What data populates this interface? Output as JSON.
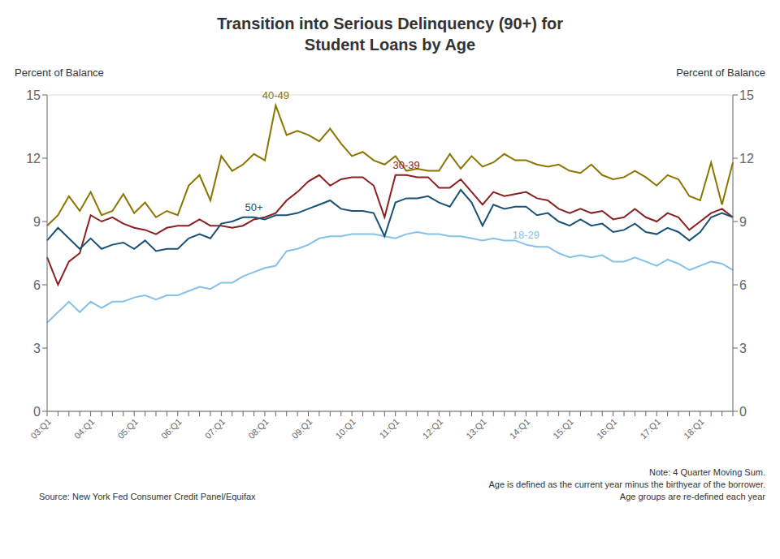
{
  "chart_data": {
    "type": "line",
    "title": "Transition into Serious Delinquency (90+) for\nStudent Loans by Age",
    "ylabel": "Percent of Balance",
    "y2label": "Percent of Balance",
    "source": "Source: New York Fed Consumer Credit Panel/Equifax",
    "notes": [
      "Note: 4 Quarter Moving Sum.",
      "Age is defined as the current year minus the birthyear of the borrower.",
      "Age groups are re-defined each year"
    ],
    "categories": [
      "03:Q1",
      null,
      null,
      null,
      "04:Q1",
      null,
      null,
      null,
      "05:Q1",
      null,
      null,
      null,
      "06:Q1",
      null,
      null,
      null,
      "07:Q1",
      null,
      null,
      null,
      "08:Q1",
      null,
      null,
      null,
      "09:Q1",
      null,
      null,
      null,
      "10:Q1",
      null,
      null,
      null,
      "11:Q1",
      null,
      null,
      null,
      "12:Q1",
      null,
      null,
      null,
      "13:Q1",
      null,
      null,
      null,
      "14:Q1",
      null,
      null,
      null,
      "15:Q1",
      null,
      null,
      null,
      "16:Q1",
      null,
      null,
      null,
      "17:Q1",
      null,
      null,
      null,
      "18:Q1",
      null,
      null,
      null
    ],
    "ylim": [
      0,
      15
    ],
    "yticks": [
      0,
      3,
      6,
      9,
      12,
      15
    ],
    "y2lim": [
      0,
      15
    ],
    "y2ticks": [
      0,
      3,
      6,
      9,
      12,
      15
    ],
    "grid": true,
    "series": [
      {
        "name": "18-29",
        "color": "#85C1E9",
        "values": [
          4.2,
          4.7,
          5.2,
          4.7,
          5.2,
          4.9,
          5.2,
          5.2,
          5.4,
          5.5,
          5.3,
          5.5,
          5.5,
          5.7,
          5.9,
          5.8,
          6.1,
          6.1,
          6.4,
          6.6,
          6.8,
          6.9,
          7.6,
          7.7,
          7.9,
          8.2,
          8.3,
          8.3,
          8.4,
          8.4,
          8.4,
          8.3,
          8.2,
          8.4,
          8.5,
          8.4,
          8.4,
          8.3,
          8.3,
          8.2,
          8.1,
          8.2,
          8.1,
          8.1,
          7.9,
          7.8,
          7.8,
          7.5,
          7.3,
          7.4,
          7.3,
          7.4,
          7.1,
          7.1,
          7.3,
          7.1,
          6.9,
          7.2,
          7.0,
          6.7,
          6.9,
          7.1,
          7.0,
          6.7
        ]
      },
      {
        "name": "30-39",
        "color": "#8B2020",
        "values": [
          7.3,
          6.0,
          7.1,
          7.5,
          9.3,
          9.0,
          9.2,
          8.9,
          8.7,
          8.6,
          8.4,
          8.7,
          8.8,
          8.8,
          9.1,
          8.8,
          8.8,
          8.7,
          8.8,
          9.1,
          9.2,
          9.4,
          10.0,
          10.4,
          10.9,
          11.2,
          10.7,
          11.0,
          11.1,
          11.1,
          10.7,
          9.2,
          11.2,
          11.2,
          11.1,
          11.1,
          10.6,
          10.6,
          11.0,
          10.4,
          9.8,
          10.4,
          10.2,
          10.3,
          10.4,
          10.1,
          10.0,
          9.6,
          9.4,
          9.6,
          9.4,
          9.5,
          9.1,
          9.2,
          9.6,
          9.2,
          9.0,
          9.4,
          9.2,
          8.6,
          9.0,
          9.4,
          9.6,
          9.2
        ]
      },
      {
        "name": "50+",
        "color": "#1A5276",
        "values": [
          8.1,
          8.7,
          8.2,
          7.7,
          8.2,
          7.7,
          7.9,
          8.0,
          7.7,
          8.1,
          7.6,
          7.7,
          7.7,
          8.2,
          8.4,
          8.2,
          8.9,
          9.0,
          9.2,
          9.2,
          9.1,
          9.3,
          9.3,
          9.4,
          9.6,
          9.8,
          10.0,
          9.6,
          9.5,
          9.5,
          9.4,
          8.3,
          9.9,
          10.1,
          10.1,
          10.2,
          9.9,
          9.7,
          10.5,
          9.9,
          8.8,
          9.8,
          9.6,
          9.7,
          9.7,
          9.3,
          9.4,
          9.0,
          8.8,
          9.1,
          8.8,
          8.9,
          8.5,
          8.6,
          8.9,
          8.5,
          8.4,
          8.7,
          8.5,
          8.1,
          8.5,
          9.2,
          9.4,
          9.2
        ]
      },
      {
        "name": "40-49",
        "color": "#8B7500",
        "values": [
          8.8,
          9.3,
          10.2,
          9.5,
          10.4,
          9.3,
          9.5,
          10.3,
          9.4,
          9.9,
          9.2,
          9.5,
          9.3,
          10.7,
          11.2,
          10.0,
          12.1,
          11.4,
          11.7,
          12.2,
          11.9,
          14.5,
          13.1,
          13.3,
          13.1,
          12.8,
          13.4,
          12.7,
          12.1,
          12.3,
          11.9,
          11.7,
          12.1,
          11.4,
          11.5,
          11.4,
          11.4,
          12.2,
          11.5,
          12.1,
          11.6,
          11.8,
          12.2,
          11.9,
          11.9,
          11.7,
          11.6,
          11.7,
          11.4,
          11.3,
          11.7,
          11.2,
          11.0,
          11.1,
          11.4,
          11.1,
          10.7,
          11.2,
          11.0,
          10.2,
          10.0,
          11.8,
          9.8,
          11.8
        ]
      }
    ]
  }
}
